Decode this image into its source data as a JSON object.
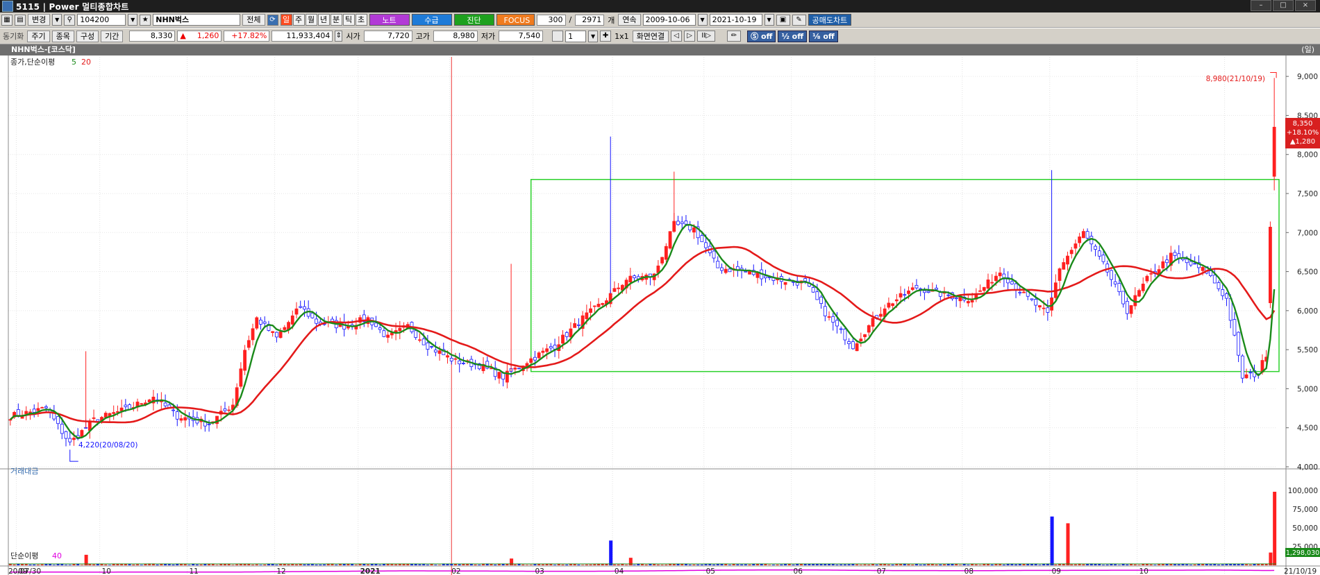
{
  "window": {
    "title": "5115 | Power 멀티종합차트"
  },
  "toolbar1": {
    "change_label": "변경",
    "code": "104200",
    "name": "NHN벅스",
    "all_label": "전체",
    "periods": [
      "일",
      "주",
      "월",
      "년",
      "분",
      "틱",
      "초"
    ],
    "active_period": "일",
    "note_label": "노트",
    "supply_label": "수급",
    "diagnose_label": "진단",
    "focus_label": "FOCUS",
    "count": "300",
    "total": "2971",
    "unit_label": "개",
    "continuous_label": "연속",
    "date_from": "2009-10-06",
    "date_to": "2021-10-19",
    "short_label": "공매도차트",
    "colors": {
      "note": "#b23ad6",
      "supply": "#1e7bd8",
      "diagnose": "#1ea11e",
      "focus": "#f07b1e",
      "short": "#1f5fa8"
    }
  },
  "toolbar2": {
    "sync_label": "동기화",
    "period_label": "주기",
    "item_label": "종목",
    "config_label": "구성",
    "range_label": "기간",
    "price": "8,330",
    "change": "1,260",
    "change_pct": "+17.82%",
    "volume": "11,933,404",
    "open_label": "시가",
    "open": "7,720",
    "high_label": "고가",
    "high": "8,980",
    "low_label": "저가",
    "low": "7,540",
    "layout_num": "1",
    "grid_label": "1x1",
    "screen_link_label": "화면연결",
    "off_labels": [
      "off",
      "off",
      "off"
    ]
  },
  "chart": {
    "header": "NHN벅스-[코스닥]",
    "unit_label": "(일)",
    "price_legend": "종가,단순이평",
    "ma_short": "5",
    "ma_long": "20",
    "max_annotation": "8,980(21/10/19)",
    "min_annotation": "4,220(20/08/20)",
    "last_price": "8,350",
    "last_pct": "+18.10%",
    "last_change": "▲1,280",
    "volume_legend": "거래대금",
    "volume_last": "1,298,030",
    "ma_panel_legend": "단순이평",
    "ma_panel_period": "40"
  },
  "chart_data": {
    "type": "candlestick",
    "price_axis": {
      "ticks": [
        "9,000",
        "8,500",
        "8,000",
        "7,500",
        "7,000",
        "6,500",
        "6,000",
        "5,500",
        "5,000",
        "4,500",
        "4,000"
      ],
      "range": [
        4000,
        9250
      ]
    },
    "volume_axis": {
      "ticks": [
        "100,000",
        "75,000",
        "50,000",
        "25,000"
      ]
    },
    "x_ticks": [
      "20/07/30",
      "09",
      "10",
      "11",
      "12",
      "2021",
      "02",
      "03",
      "04",
      "05",
      "06",
      "07",
      "08",
      "09",
      "10",
      "21/10/19"
    ],
    "anchors": [
      [
        "2020-07-30",
        4650
      ],
      [
        "2020-08-06",
        4700
      ],
      [
        "2020-08-12",
        4750
      ],
      [
        "2020-08-20",
        4300
      ],
      [
        "2020-08-28",
        4600
      ],
      [
        "2020-09-10",
        4750
      ],
      [
        "2020-09-18",
        4900
      ],
      [
        "2020-09-28",
        4650
      ],
      [
        "2020-10-08",
        4550
      ],
      [
        "2020-10-16",
        4800
      ],
      [
        "2020-10-21",
        5500
      ],
      [
        "2020-10-26",
        5900
      ],
      [
        "2020-11-02",
        5650
      ],
      [
        "2020-11-10",
        6050
      ],
      [
        "2020-11-16",
        5850
      ],
      [
        "2020-11-25",
        5800
      ],
      [
        "2020-12-03",
        5900
      ],
      [
        "2020-12-10",
        5650
      ],
      [
        "2020-12-17",
        5800
      ],
      [
        "2020-12-24",
        5550
      ],
      [
        "2021-01-04",
        5350
      ],
      [
        "2021-01-12",
        5300
      ],
      [
        "2021-01-20",
        5150
      ],
      [
        "2021-01-28",
        5350
      ],
      [
        "2021-02-08",
        5550
      ],
      [
        "2021-02-17",
        5900
      ],
      [
        "2021-02-24",
        6100
      ],
      [
        "2021-03-04",
        6400
      ],
      [
        "2021-03-15",
        6450
      ],
      [
        "2021-03-22",
        7100
      ],
      [
        "2021-03-29",
        7050
      ],
      [
        "2021-04-06",
        6550
      ],
      [
        "2021-04-15",
        6500
      ],
      [
        "2021-04-27",
        6400
      ],
      [
        "2021-05-06",
        6350
      ],
      [
        "2021-05-14",
        5900
      ],
      [
        "2021-05-24",
        5550
      ],
      [
        "2021-06-03",
        6050
      ],
      [
        "2021-06-15",
        6300
      ],
      [
        "2021-06-24",
        6200
      ],
      [
        "2021-07-05",
        6150
      ],
      [
        "2021-07-14",
        6500
      ],
      [
        "2021-07-22",
        6200
      ],
      [
        "2021-07-30",
        5950
      ],
      [
        "2021-08-04",
        6550
      ],
      [
        "2021-08-12",
        7000
      ],
      [
        "2021-08-20",
        6500
      ],
      [
        "2021-08-27",
        6000
      ],
      [
        "2021-09-03",
        6400
      ],
      [
        "2021-09-13",
        6700
      ],
      [
        "2021-09-24",
        6500
      ],
      [
        "2021-10-01",
        6150
      ],
      [
        "2021-10-07",
        5150
      ],
      [
        "2021-10-13",
        5200
      ],
      [
        "2021-10-15",
        5450
      ],
      [
        "2021-10-18",
        7070
      ],
      [
        "2021-10-19",
        8350
      ]
    ],
    "highlight_box": {
      "from": "2021-02-01",
      "to": "2021-10-19",
      "low": 5220,
      "high": 7680
    },
    "vline_date": "2021-01-01",
    "volume_spikes": [
      [
        "2020-08-26",
        14000,
        "up"
      ],
      [
        "2021-01-22",
        9000,
        "up"
      ],
      [
        "2021-02-26",
        33000,
        "down"
      ],
      [
        "2021-03-05",
        10000,
        "up"
      ],
      [
        "2021-08-02",
        65000,
        "down"
      ],
      [
        "2021-08-06",
        56000,
        "up"
      ],
      [
        "2021-10-18",
        17000,
        "up"
      ],
      [
        "2021-10-19",
        98000,
        "up"
      ]
    ],
    "colors": {
      "up": "#ff2020",
      "down": "#1414ff",
      "ma5": "#1a8a1a",
      "ma20": "#e41a1a",
      "box": "#2bd12b",
      "vline": "#e33",
      "ma40": "#e000e0"
    }
  }
}
